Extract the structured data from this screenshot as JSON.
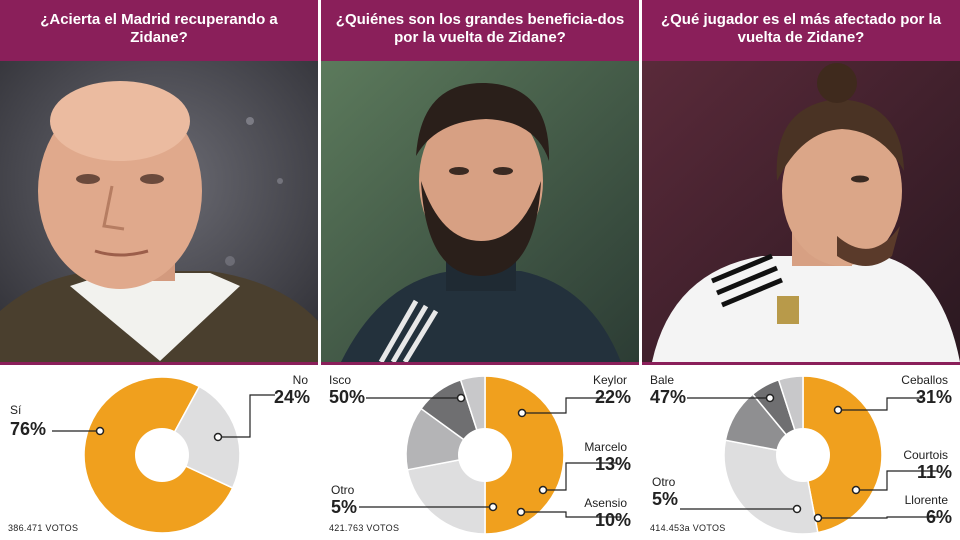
{
  "colors": {
    "header_bg": "#8a1f5a",
    "primary_slice": "#f0a01e",
    "grey_1": "#dededf",
    "grey_2": "#b4b4b6",
    "grey_3": "#8f8f91",
    "grey_4": "#6f6f71",
    "grey_5": "#c8c8ca"
  },
  "panels": [
    {
      "question": "¿Acierta el Madrid recuperando a Zidane?",
      "votes": "386.471 VOTOS",
      "photo": "zinedine-zidane-portrait"
    },
    {
      "question": "¿Quiénes son los grandes beneficia-dos por la vuelta de Zidane?",
      "votes": "421.763 VOTOS",
      "photo": "isco-portrait"
    },
    {
      "question": "¿Qué jugador es el más afectado por la vuelta de Zidane?",
      "votes": "414.453a VOTOS",
      "photo": "gareth-bale-portrait"
    }
  ],
  "chart_data": [
    {
      "type": "pie",
      "title": "¿Acierta el Madrid recuperando a Zidane?",
      "slices": [
        {
          "label": "Sí",
          "value": 76,
          "display": "76%"
        },
        {
          "label": "No",
          "value": 24,
          "display": "24%"
        }
      ],
      "total_votes": "386.471 VOTOS"
    },
    {
      "type": "pie",
      "title": "¿Quiénes son los grandes beneficia-dos por la vuelta de Zidane?",
      "slices": [
        {
          "label": "Isco",
          "value": 50,
          "display": "50%"
        },
        {
          "label": "Keylor",
          "value": 22,
          "display": "22%"
        },
        {
          "label": "Marcelo",
          "value": 13,
          "display": "13%"
        },
        {
          "label": "Asensio",
          "value": 10,
          "display": "10%"
        },
        {
          "label": "Otro",
          "value": 5,
          "display": "5%"
        }
      ],
      "total_votes": "421.763 VOTOS"
    },
    {
      "type": "pie",
      "title": "¿Qué jugador es el más afectado por la vuelta de Zidane?",
      "slices": [
        {
          "label": "Bale",
          "value": 47,
          "display": "47%"
        },
        {
          "label": "Ceballos",
          "value": 31,
          "display": "31%"
        },
        {
          "label": "Courtois",
          "value": 11,
          "display": "11%"
        },
        {
          "label": "Llorente",
          "value": 6,
          "display": "6%"
        },
        {
          "label": "Otro",
          "value": 5,
          "display": "5%"
        }
      ],
      "total_votes": "414.453a VOTOS"
    }
  ]
}
